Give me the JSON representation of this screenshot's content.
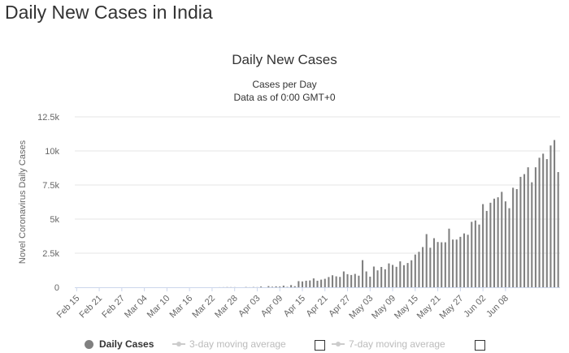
{
  "page": {
    "title": "Daily New Cases in India"
  },
  "chart_data": {
    "type": "bar",
    "title": "Daily New Cases",
    "subtitle": "Cases per Day",
    "subtitle2": "Data as of 0:00 GMT+0",
    "xlabel": "",
    "ylabel": "Novel Coronavirus Daily Cases",
    "ylim": [
      0,
      12500
    ],
    "y_ticks": [
      "0",
      "2.5k",
      "5k",
      "7.5k",
      "10k",
      "12.5k"
    ],
    "y_tick_values": [
      0,
      2500,
      5000,
      7500,
      10000,
      12500
    ],
    "x_ticks": [
      "Feb 15",
      "Feb 21",
      "Feb 27",
      "Mar 04",
      "Mar 10",
      "Mar 16",
      "Mar 22",
      "Mar 28",
      "Apr 03",
      "Apr 09",
      "Apr 15",
      "Apr 21",
      "Apr 27",
      "May 03",
      "May 09",
      "May 15",
      "May 21",
      "May 27",
      "Jun 02",
      "Jun 08"
    ],
    "start_date": "Feb 15",
    "grid": true,
    "legend": "bottom",
    "bar_color": "#808080",
    "series": [
      {
        "name": "Daily Cases",
        "values": [
          0,
          0,
          0,
          0,
          0,
          0,
          0,
          0,
          0,
          0,
          0,
          0,
          0,
          0,
          0,
          0,
          0,
          0,
          0,
          0,
          0,
          0,
          0,
          0,
          0,
          0,
          0,
          0,
          0,
          0,
          0,
          0,
          0,
          0,
          0,
          0,
          0,
          0,
          5,
          8,
          15,
          10,
          10,
          0,
          0,
          20,
          5,
          20,
          10,
          55,
          0,
          85,
          40,
          70,
          55,
          120,
          30,
          160,
          80,
          450,
          430,
          480,
          500,
          650,
          480,
          560,
          620,
          750,
          880,
          800,
          760,
          1160,
          960,
          900,
          980,
          850,
          1990,
          1160,
          780,
          1520,
          1240,
          1490,
          1320,
          1750,
          1640,
          1500,
          1900,
          1620,
          1780,
          1980,
          2400,
          2600,
          2950,
          3900,
          2900,
          3600,
          3320,
          3300,
          3300,
          4300,
          3500,
          3500,
          3700,
          3950,
          3850,
          4800,
          4900,
          4600,
          6100,
          5600,
          6200,
          6500,
          6600,
          7000,
          6300,
          5800,
          7300,
          7200,
          8100,
          8300,
          8800,
          7700,
          8800,
          9500,
          9800,
          9400,
          10400,
          10800,
          8450
        ]
      }
    ],
    "legend_items": [
      "Daily Cases",
      "3-day moving average",
      "7-day moving average"
    ]
  }
}
